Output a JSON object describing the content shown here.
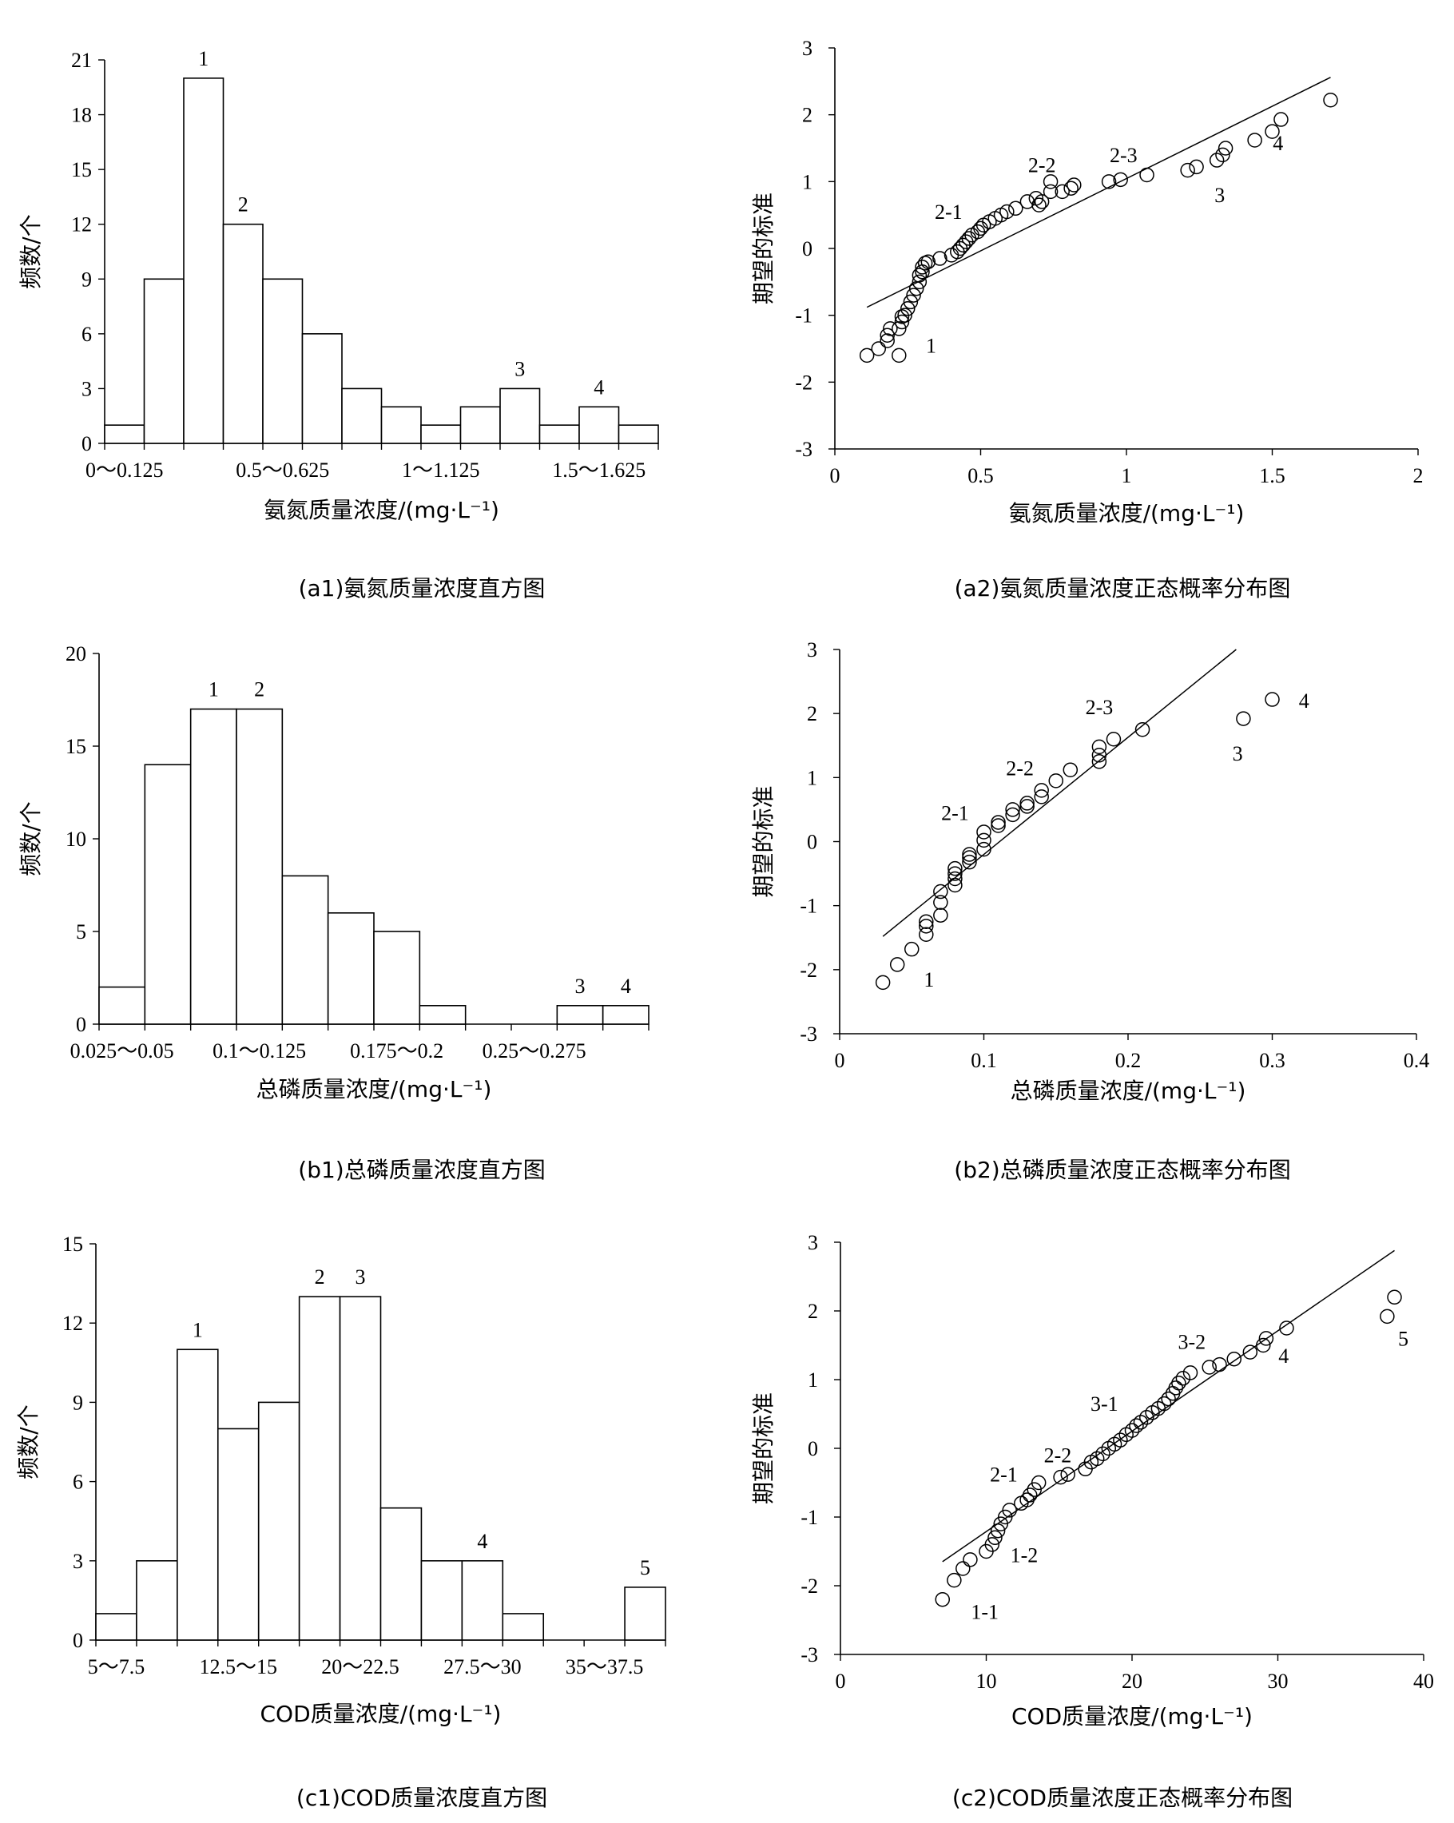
{
  "chart_data": [
    {
      "id": "a1",
      "type": "bar",
      "caption": "(a1)氨氮质量浓度直方图",
      "xlabel": "氨氮质量浓度/(mg·L⁻¹)",
      "ylabel": "频数/个",
      "ylim": [
        0,
        21
      ],
      "yticks": [
        0,
        3,
        6,
        9,
        12,
        15,
        18,
        21
      ],
      "categories": [
        "0～0.125",
        "0.125～0.25",
        "0.25～0.375",
        "0.375～0.5",
        "0.5～0.625",
        "0.625～0.75",
        "0.75～0.875",
        "0.875～1",
        "1～1.125",
        "1.125～1.25",
        "1.25～1.375",
        "1.375～1.5",
        "1.5～1.625",
        "1.625～1.75"
      ],
      "values": [
        1,
        9,
        20,
        12,
        9,
        6,
        3,
        2,
        1,
        2,
        3,
        1,
        2,
        1
      ],
      "shown_tick_labels": [
        {
          "index": 0,
          "label": "0～0.125"
        },
        {
          "index": 4,
          "label": "0.5～0.625"
        },
        {
          "index": 8,
          "label": "1～1.125"
        },
        {
          "index": 12,
          "label": "1.5～1.625"
        }
      ],
      "annotations": [
        {
          "index": 2,
          "text": "1"
        },
        {
          "index": 3,
          "text": "2"
        },
        {
          "index": 10,
          "text": "3"
        },
        {
          "index": 12,
          "text": "4"
        }
      ]
    },
    {
      "id": "a2",
      "type": "scatter",
      "caption": "(a2)氨氮质量浓度正态概率分布图",
      "xlabel": "氨氮质量浓度/(mg·L⁻¹)",
      "ylabel": "期望的标准",
      "xlim": [
        0,
        2
      ],
      "ylim": [
        -3,
        3
      ],
      "xticks": [
        "0",
        "0.5",
        "1",
        "1.5",
        "2"
      ],
      "yticks": [
        "-3",
        "-2",
        "-1",
        "0",
        "1",
        "2",
        "3"
      ],
      "fit_line": [
        [
          0.11,
          -0.88
        ],
        [
          1.7,
          2.56
        ]
      ],
      "points": [
        [
          0.11,
          -1.6
        ],
        [
          0.15,
          -1.5
        ],
        [
          0.18,
          -1.38
        ],
        [
          0.18,
          -1.3
        ],
        [
          0.19,
          -1.2
        ],
        [
          0.22,
          -1.6
        ],
        [
          0.22,
          -1.2
        ],
        [
          0.23,
          -1.1
        ],
        [
          0.23,
          -1.02
        ],
        [
          0.24,
          -1.0
        ],
        [
          0.25,
          -0.9
        ],
        [
          0.26,
          -0.8
        ],
        [
          0.27,
          -0.7
        ],
        [
          0.28,
          -0.6
        ],
        [
          0.29,
          -0.5
        ],
        [
          0.29,
          -0.4
        ],
        [
          0.3,
          -0.35
        ],
        [
          0.3,
          -0.28
        ],
        [
          0.31,
          -0.22
        ],
        [
          0.32,
          -0.2
        ],
        [
          0.36,
          -0.15
        ],
        [
          0.4,
          -0.1
        ],
        [
          0.42,
          -0.05
        ],
        [
          0.43,
          0.0
        ],
        [
          0.44,
          0.05
        ],
        [
          0.45,
          0.1
        ],
        [
          0.46,
          0.15
        ],
        [
          0.47,
          0.2
        ],
        [
          0.49,
          0.25
        ],
        [
          0.5,
          0.3
        ],
        [
          0.51,
          0.35
        ],
        [
          0.53,
          0.4
        ],
        [
          0.55,
          0.45
        ],
        [
          0.57,
          0.5
        ],
        [
          0.59,
          0.55
        ],
        [
          0.62,
          0.6
        ],
        [
          0.66,
          0.7
        ],
        [
          0.69,
          0.75
        ],
        [
          0.7,
          0.65
        ],
        [
          0.71,
          0.7
        ],
        [
          0.74,
          0.85
        ],
        [
          0.74,
          1.0
        ],
        [
          0.78,
          0.85
        ],
        [
          0.81,
          0.9
        ],
        [
          0.82,
          0.95
        ],
        [
          0.94,
          1.0
        ],
        [
          0.98,
          1.03
        ],
        [
          1.07,
          1.1
        ],
        [
          1.21,
          1.17
        ],
        [
          1.24,
          1.22
        ],
        [
          1.31,
          1.32
        ],
        [
          1.33,
          1.4
        ],
        [
          1.34,
          1.5
        ],
        [
          1.44,
          1.62
        ],
        [
          1.5,
          1.75
        ],
        [
          1.53,
          1.93
        ],
        [
          1.7,
          2.22
        ]
      ],
      "annotations": [
        {
          "x": 0.33,
          "y": -1.45,
          "text": "1"
        },
        {
          "x": 0.39,
          "y": 0.55,
          "text": "2-1"
        },
        {
          "x": 0.71,
          "y": 1.25,
          "text": "2-2"
        },
        {
          "x": 0.99,
          "y": 1.4,
          "text": "2-3"
        },
        {
          "x": 1.32,
          "y": 0.8,
          "text": "3"
        },
        {
          "x": 1.52,
          "y": 1.58,
          "text": "4"
        }
      ]
    },
    {
      "id": "b1",
      "type": "bar",
      "caption": "(b1)总磷质量浓度直方图",
      "xlabel": "总磷质量浓度/(mg·L⁻¹)",
      "ylabel": "频数/个",
      "ylim": [
        0,
        20
      ],
      "yticks": [
        0,
        5,
        10,
        15,
        20
      ],
      "categories": [
        "0.025～0.05",
        "0.05～0.075",
        "0.075～0.1",
        "0.1～0.125",
        "0.125～0.15",
        "0.15～0.175",
        "0.175～0.2",
        "0.2～0.225",
        "0.225～0.25",
        "0.25～0.275",
        "0.275～0.3",
        "0.3～0.325"
      ],
      "values": [
        2,
        14,
        17,
        17,
        8,
        6,
        5,
        1,
        0,
        0,
        1,
        1
      ],
      "shown_tick_labels": [
        {
          "index": 0,
          "label": "0.025～0.05"
        },
        {
          "index": 3,
          "label": "0.1～0.125"
        },
        {
          "index": 6,
          "label": "0.175～0.2"
        },
        {
          "index": 9,
          "label": "0.25～0.275"
        }
      ],
      "annotations": [
        {
          "index": 2,
          "text": "1"
        },
        {
          "index": 3,
          "text": "2"
        },
        {
          "index": 10,
          "text": "3"
        },
        {
          "index": 11,
          "text": "4"
        }
      ]
    },
    {
      "id": "b2",
      "type": "scatter",
      "caption": "(b2)总磷质量浓度正态概率分布图",
      "xlabel": "总磷质量浓度/(mg·L⁻¹)",
      "ylabel": "期望的标准",
      "xlim": [
        0,
        0.4
      ],
      "ylim": [
        -3,
        3
      ],
      "xticks": [
        "0",
        "0.1",
        "0.2",
        "0.3",
        "0.4"
      ],
      "yticks": [
        "-3",
        "-2",
        "-1",
        "0",
        "1",
        "2",
        "3"
      ],
      "fit_line": [
        [
          0.03,
          -1.48
        ],
        [
          0.275,
          3.0
        ]
      ],
      "points": [
        [
          0.03,
          -2.2
        ],
        [
          0.04,
          -1.92
        ],
        [
          0.05,
          -1.68
        ],
        [
          0.06,
          -1.45
        ],
        [
          0.06,
          -1.32
        ],
        [
          0.06,
          -1.25
        ],
        [
          0.07,
          -1.15
        ],
        [
          0.07,
          -0.95
        ],
        [
          0.07,
          -0.78
        ],
        [
          0.08,
          -0.68
        ],
        [
          0.08,
          -0.58
        ],
        [
          0.08,
          -0.5
        ],
        [
          0.08,
          -0.42
        ],
        [
          0.09,
          -0.32
        ],
        [
          0.09,
          -0.25
        ],
        [
          0.09,
          -0.2
        ],
        [
          0.1,
          -0.12
        ],
        [
          0.1,
          0.02
        ],
        [
          0.1,
          0.15
        ],
        [
          0.11,
          0.25
        ],
        [
          0.11,
          0.3
        ],
        [
          0.12,
          0.42
        ],
        [
          0.12,
          0.5
        ],
        [
          0.13,
          0.55
        ],
        [
          0.13,
          0.6
        ],
        [
          0.14,
          0.7
        ],
        [
          0.14,
          0.8
        ],
        [
          0.15,
          0.95
        ],
        [
          0.16,
          1.12
        ],
        [
          0.18,
          1.25
        ],
        [
          0.18,
          1.35
        ],
        [
          0.18,
          1.48
        ],
        [
          0.19,
          1.6
        ],
        [
          0.21,
          1.75
        ],
        [
          0.28,
          1.92
        ],
        [
          0.3,
          2.22
        ]
      ],
      "annotations": [
        {
          "x": 0.062,
          "y": -2.15,
          "text": "1"
        },
        {
          "x": 0.08,
          "y": 0.45,
          "text": "2-1"
        },
        {
          "x": 0.125,
          "y": 1.15,
          "text": "2-2"
        },
        {
          "x": 0.18,
          "y": 2.1,
          "text": "2-3"
        },
        {
          "x": 0.276,
          "y": 1.38,
          "text": "3"
        },
        {
          "x": 0.322,
          "y": 2.2,
          "text": "4"
        }
      ]
    },
    {
      "id": "c1",
      "type": "bar",
      "caption": "(c1)COD质量浓度直方图",
      "xlabel": "COD质量浓度/(mg·L⁻¹)",
      "ylabel": "频数/个",
      "ylim": [
        0,
        15
      ],
      "yticks": [
        0,
        3,
        6,
        9,
        12,
        15
      ],
      "categories": [
        "5～7.5",
        "7.5～10",
        "10～12.5",
        "12.5～15",
        "15～17.5",
        "17.5～20",
        "20～22.5",
        "22.5～25",
        "25～27.5",
        "27.5～30",
        "30～32.5",
        "32.5～35",
        "35～37.5",
        "37.5～40"
      ],
      "values": [
        1,
        3,
        11,
        8,
        9,
        13,
        13,
        5,
        3,
        3,
        1,
        0,
        0,
        2
      ],
      "shown_tick_labels": [
        {
          "index": 0,
          "label": "5～7.5"
        },
        {
          "index": 3,
          "label": "12.5～15"
        },
        {
          "index": 6,
          "label": "20～22.5"
        },
        {
          "index": 9,
          "label": "27.5～30"
        },
        {
          "index": 12,
          "label": "35～37.5"
        }
      ],
      "annotations": [
        {
          "index": 2,
          "text": "1"
        },
        {
          "index": 5,
          "text": "2"
        },
        {
          "index": 6,
          "text": "3"
        },
        {
          "index": 9,
          "text": "4"
        },
        {
          "index": 13,
          "text": "5"
        }
      ]
    },
    {
      "id": "c2",
      "type": "scatter",
      "caption": "(c2)COD质量浓度正态概率分布图",
      "xlabel": "COD质量浓度/(mg·L⁻¹)",
      "ylabel": "期望的标准",
      "xlim": [
        0,
        40
      ],
      "ylim": [
        -3,
        3
      ],
      "xticks": [
        "0",
        "10",
        "20",
        "30",
        "40"
      ],
      "yticks": [
        "-3",
        "-2",
        "-1",
        "0",
        "1",
        "2",
        "3"
      ],
      "fit_line": [
        [
          7.0,
          -1.65
        ],
        [
          38.0,
          2.88
        ]
      ],
      "points": [
        [
          7.0,
          -2.2
        ],
        [
          7.8,
          -1.92
        ],
        [
          8.4,
          -1.75
        ],
        [
          8.9,
          -1.62
        ],
        [
          10.0,
          -1.5
        ],
        [
          10.4,
          -1.4
        ],
        [
          10.6,
          -1.3
        ],
        [
          10.8,
          -1.2
        ],
        [
          11.0,
          -1.1
        ],
        [
          11.3,
          -1.0
        ],
        [
          11.6,
          -0.9
        ],
        [
          12.4,
          -0.8
        ],
        [
          12.8,
          -0.75
        ],
        [
          13.0,
          -0.68
        ],
        [
          13.3,
          -0.6
        ],
        [
          13.6,
          -0.5
        ],
        [
          15.1,
          -0.42
        ],
        [
          15.6,
          -0.38
        ],
        [
          16.8,
          -0.3
        ],
        [
          17.2,
          -0.2
        ],
        [
          17.6,
          -0.15
        ],
        [
          18.0,
          -0.08
        ],
        [
          18.4,
          0.0
        ],
        [
          18.8,
          0.06
        ],
        [
          19.2,
          0.12
        ],
        [
          19.6,
          0.2
        ],
        [
          20.0,
          0.26
        ],
        [
          20.3,
          0.33
        ],
        [
          20.6,
          0.38
        ],
        [
          21.0,
          0.45
        ],
        [
          21.4,
          0.52
        ],
        [
          21.8,
          0.58
        ],
        [
          22.2,
          0.65
        ],
        [
          22.5,
          0.72
        ],
        [
          22.8,
          0.8
        ],
        [
          23.0,
          0.88
        ],
        [
          23.2,
          0.95
        ],
        [
          23.5,
          1.02
        ],
        [
          24.0,
          1.1
        ],
        [
          25.3,
          1.18
        ],
        [
          26.0,
          1.22
        ],
        [
          27.0,
          1.3
        ],
        [
          28.1,
          1.4
        ],
        [
          29.0,
          1.5
        ],
        [
          29.2,
          1.6
        ],
        [
          30.6,
          1.75
        ],
        [
          37.5,
          1.92
        ],
        [
          38.0,
          2.2
        ]
      ],
      "annotations": [
        {
          "x": 9.9,
          "y": -2.38,
          "text": "1-1"
        },
        {
          "x": 12.6,
          "y": -1.55,
          "text": "1-2"
        },
        {
          "x": 11.2,
          "y": -0.38,
          "text": "2-1"
        },
        {
          "x": 14.9,
          "y": -0.1,
          "text": "2-2"
        },
        {
          "x": 18.1,
          "y": 0.65,
          "text": "3-1"
        },
        {
          "x": 24.1,
          "y": 1.55,
          "text": "3-2"
        },
        {
          "x": 30.4,
          "y": 1.35,
          "text": "4"
        },
        {
          "x": 38.6,
          "y": 1.6,
          "text": "5"
        }
      ]
    }
  ]
}
